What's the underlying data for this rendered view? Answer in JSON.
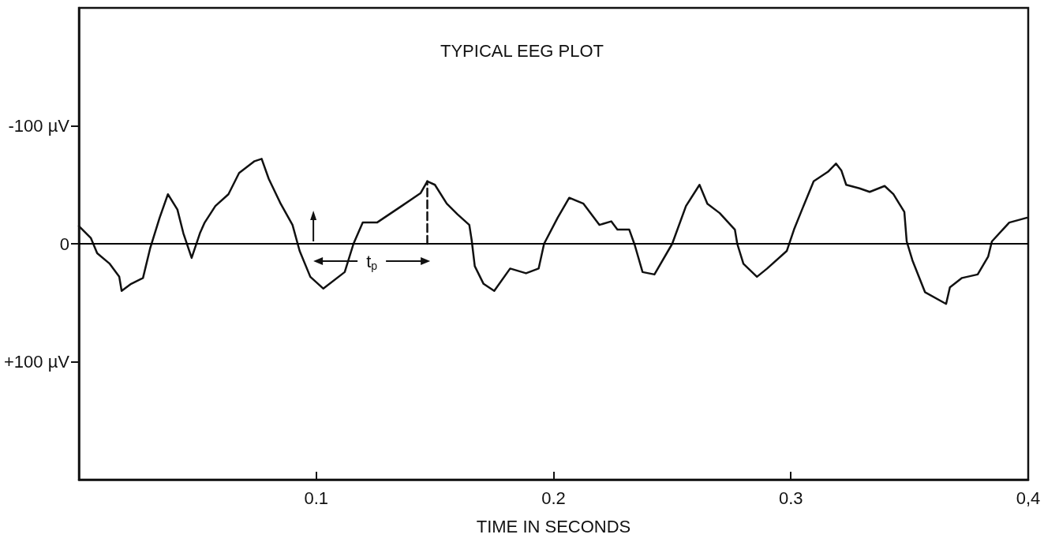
{
  "chart_data": {
    "type": "line",
    "title": "TYPICAL EEG PLOT",
    "xlabel": "TIME IN SECONDS",
    "xlim": [
      0,
      0.4
    ],
    "xticks": [
      {
        "value": 0.1,
        "label": "0.1"
      },
      {
        "value": 0.2,
        "label": "0.2"
      },
      {
        "value": 0.3,
        "label": "0.3"
      },
      {
        "value": 0.4,
        "label": "0,4"
      }
    ],
    "ylim": [
      200,
      -200
    ],
    "yticks": [
      {
        "value": -100,
        "label": "-100 µV"
      },
      {
        "value": 0,
        "label": "0"
      },
      {
        "value": 100,
        "label": "+100 µV"
      }
    ],
    "grid": false,
    "marker": "none",
    "line_style": "solid",
    "ref_lines": [
      {
        "axis": "y",
        "value": 0,
        "color": "#000000"
      }
    ],
    "annotations": [
      {
        "text": "t$_{p}$",
        "x": 0.1234,
        "y": 0
      }
    ],
    "series": [
      {
        "color": "#111111",
        "x": [
          0,
          0.005,
          0.0077,
          0.013,
          0.017,
          0.018,
          0.022,
          0.027,
          0.03,
          0.034,
          0.0375,
          0.0415,
          0.044,
          0.0475,
          0.051,
          0.053,
          0.0575,
          0.063,
          0.0675,
          0.074,
          0.077,
          0.08,
          0.085,
          0.09,
          0.093,
          0.0975,
          0.103,
          0.112,
          0.1157,
          0.1196,
          0.1256,
          0.136,
          0.144,
          0.1468,
          0.15,
          0.155,
          0.1595,
          0.1645,
          0.1655,
          0.1668,
          0.1705,
          0.175,
          0.1817,
          0.1884,
          0.1937,
          0.196,
          0.2017,
          0.2066,
          0.2126,
          0.2193,
          0.2243,
          0.2269,
          0.2319,
          0.2342,
          0.2375,
          0.2425,
          0.25,
          0.2558,
          0.2615,
          0.2648,
          0.27,
          0.2764,
          0.2774,
          0.28,
          0.2857,
          0.29,
          0.2983,
          0.3013,
          0.3047,
          0.3096,
          0.3156,
          0.319,
          0.3213,
          0.3233,
          0.3289,
          0.3332,
          0.3395,
          0.3432,
          0.3478,
          0.3488,
          0.3512,
          0.3565,
          0.3654,
          0.367,
          0.3721,
          0.3787,
          0.3831,
          0.3847,
          0.392,
          0.3993
        ],
        "values": [
          -15,
          -5,
          8,
          17,
          28,
          40,
          34,
          29,
          4,
          -22,
          -42,
          -29,
          -9,
          12,
          -9,
          -18,
          -32,
          -42,
          -60,
          -70,
          -72,
          -55,
          -34,
          -16,
          6,
          28,
          38,
          24,
          0,
          -18,
          -18,
          -32,
          -43,
          -53,
          -50,
          -34,
          -25,
          -16,
          -3,
          19,
          34,
          40,
          21,
          25,
          21,
          0,
          -22,
          -39,
          -34,
          -16,
          -19,
          -12,
          -12,
          1,
          24,
          26,
          0,
          -32,
          -50,
          -34,
          -26,
          -12,
          0,
          17,
          28,
          21,
          6,
          -12,
          -29,
          -53,
          -61,
          -68,
          -62,
          -50,
          -47,
          -44,
          -49,
          -42,
          -27,
          -2,
          14,
          41,
          51,
          37,
          29,
          26,
          11,
          -2,
          -18,
          -22
        ]
      },
      {
        "color": "#111111",
        "line_style": "dashed",
        "x": [
          0.1468,
          0.1468
        ],
        "values": [
          0,
          -53
        ]
      }
    ]
  }
}
